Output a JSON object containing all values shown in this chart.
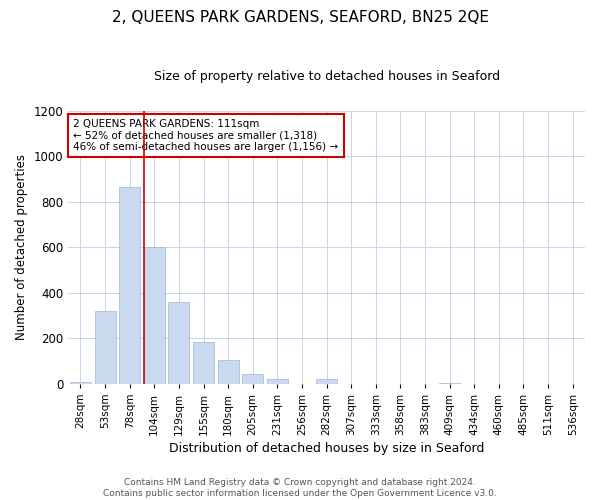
{
  "title": "2, QUEENS PARK GARDENS, SEAFORD, BN25 2QE",
  "subtitle": "Size of property relative to detached houses in Seaford",
  "xlabel": "Distribution of detached houses by size in Seaford",
  "ylabel": "Number of detached properties",
  "bar_labels": [
    "28sqm",
    "53sqm",
    "78sqm",
    "104sqm",
    "129sqm",
    "155sqm",
    "180sqm",
    "205sqm",
    "231sqm",
    "256sqm",
    "282sqm",
    "307sqm",
    "333sqm",
    "358sqm",
    "383sqm",
    "409sqm",
    "434sqm",
    "460sqm",
    "485sqm",
    "511sqm",
    "536sqm"
  ],
  "bar_values": [
    10,
    318,
    863,
    600,
    360,
    185,
    103,
    45,
    20,
    0,
    20,
    0,
    0,
    0,
    0,
    5,
    0,
    0,
    0,
    0,
    0
  ],
  "bar_color": "#c9d9f0",
  "bar_edge_color": "#a0b8d8",
  "vline_index": 3,
  "vline_color": "#cc0000",
  "annotation_title": "2 QUEENS PARK GARDENS: 111sqm",
  "annotation_line1": "← 52% of detached houses are smaller (1,318)",
  "annotation_line2": "46% of semi-detached houses are larger (1,156) →",
  "annotation_box_color": "#ffffff",
  "annotation_box_edge": "#cc0000",
  "ylim": [
    0,
    1200
  ],
  "yticks": [
    0,
    200,
    400,
    600,
    800,
    1000,
    1200
  ],
  "footer1": "Contains HM Land Registry data © Crown copyright and database right 2024.",
  "footer2": "Contains public sector information licensed under the Open Government Licence v3.0.",
  "background_color": "#ffffff",
  "grid_color": "#c8d4e8",
  "title_fontsize": 11,
  "subtitle_fontsize": 9,
  "footer_fontsize": 6.5
}
